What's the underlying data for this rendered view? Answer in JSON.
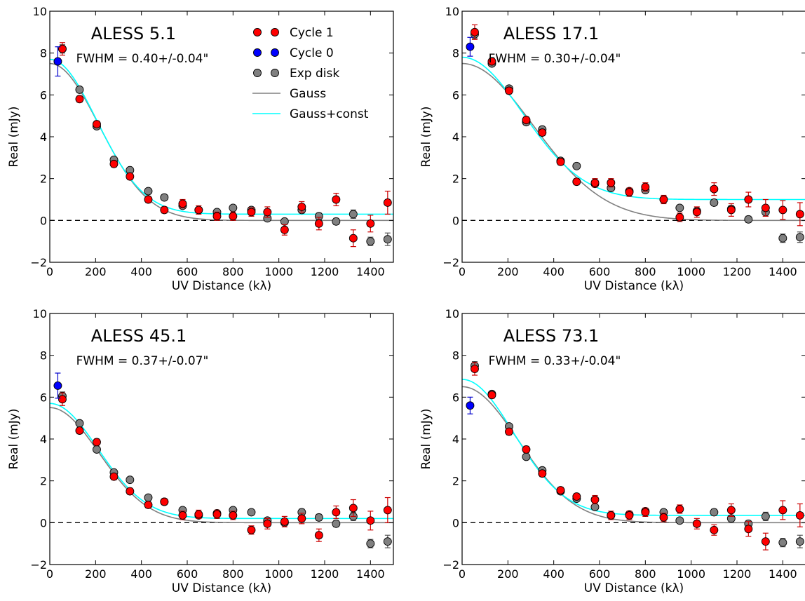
{
  "figure": {
    "xlabel": "UV Distance (kλ)",
    "ylabel": "Real (mJy)",
    "xlim": [
      0,
      1500
    ],
    "ylim": [
      -2,
      10
    ],
    "xticks": [
      0,
      200,
      400,
      600,
      800,
      1000,
      1200,
      1400
    ],
    "yticks": [
      -2,
      0,
      2,
      4,
      6,
      8,
      10
    ],
    "colors": {
      "cycle1": "#ff0000",
      "cycle0": "#0000ff",
      "exp_disk": "#808080",
      "gauss": "#808080",
      "gauss_const": "#00ffff",
      "errorbar_cycle1": "#cc0000",
      "errorbar_cycle0": "#0000cc",
      "zero_line": "#000000"
    }
  },
  "chart_data": [
    {
      "type": "scatter",
      "title": "ALESS 5.1",
      "annotation": "FWHM = 0.40+/-0.04\"",
      "legend": {
        "placement": "top-right",
        "entries": [
          "Cycle 1",
          "Cycle 0",
          "Exp disk",
          "Gauss",
          "Gauss+const"
        ]
      },
      "series": [
        {
          "name": "Cycle 1",
          "x": [
            55,
            130,
            205,
            280,
            350,
            430,
            500,
            580,
            650,
            730,
            800,
            880,
            950,
            1025,
            1100,
            1175,
            1250,
            1325,
            1400,
            1475
          ],
          "y": [
            8.2,
            5.8,
            4.6,
            2.7,
            2.1,
            1.0,
            0.5,
            0.8,
            0.5,
            0.2,
            0.2,
            0.4,
            0.4,
            -0.45,
            0.65,
            -0.15,
            1.0,
            -0.85,
            -0.15,
            0.85
          ],
          "err": [
            0.3,
            0.15,
            0.15,
            0.15,
            0.15,
            0.15,
            0.15,
            0.2,
            0.2,
            0.2,
            0.2,
            0.2,
            0.25,
            0.25,
            0.25,
            0.3,
            0.3,
            0.4,
            0.4,
            0.55
          ]
        },
        {
          "name": "Cycle 0",
          "x": [
            35
          ],
          "y": [
            7.6
          ],
          "err": [
            0.7
          ]
        },
        {
          "name": "Exp disk",
          "x": [
            55,
            130,
            205,
            280,
            350,
            430,
            500,
            580,
            650,
            730,
            800,
            880,
            950,
            1025,
            1100,
            1175,
            1250,
            1325,
            1400,
            1475
          ],
          "y": [
            8.2,
            6.25,
            4.5,
            2.9,
            2.4,
            1.4,
            1.1,
            0.7,
            0.5,
            0.4,
            0.6,
            0.5,
            0.1,
            -0.05,
            0.5,
            0.2,
            -0.05,
            0.3,
            -1.0,
            -0.9
          ],
          "err": [
            0.2,
            0.1,
            0.1,
            0.1,
            0.1,
            0.1,
            0.1,
            0.1,
            0.1,
            0.1,
            0.1,
            0.1,
            0.1,
            0.1,
            0.15,
            0.15,
            0.15,
            0.2,
            0.2,
            0.3
          ]
        },
        {
          "name": "Gauss",
          "model": "gauss",
          "amplitude": 7.5,
          "sigma": 215,
          "constant": 0
        },
        {
          "name": "Gauss+const",
          "model": "gauss",
          "amplitude": 7.4,
          "sigma": 205,
          "constant": 0.3
        }
      ]
    },
    {
      "type": "scatter",
      "title": "ALESS 17.1",
      "annotation": "FWHM = 0.30+/-0.04\"",
      "series": [
        {
          "name": "Cycle 1",
          "x": [
            55,
            130,
            205,
            280,
            350,
            430,
            500,
            580,
            650,
            730,
            800,
            880,
            950,
            1025,
            1100,
            1175,
            1250,
            1325,
            1400,
            1475
          ],
          "y": [
            9.0,
            7.6,
            6.2,
            4.8,
            4.2,
            2.8,
            1.85,
            1.8,
            1.8,
            1.35,
            1.6,
            1.0,
            0.15,
            0.4,
            1.5,
            0.5,
            1.0,
            0.6,
            0.5,
            0.3
          ],
          "err": [
            0.35,
            0.15,
            0.15,
            0.15,
            0.15,
            0.15,
            0.15,
            0.2,
            0.2,
            0.2,
            0.2,
            0.2,
            0.2,
            0.25,
            0.3,
            0.3,
            0.35,
            0.4,
            0.45,
            0.55
          ]
        },
        {
          "name": "Cycle 0",
          "x": [
            35
          ],
          "y": [
            8.3
          ],
          "err": [
            0.45
          ]
        },
        {
          "name": "Exp disk",
          "x": [
            55,
            130,
            205,
            280,
            350,
            430,
            500,
            580,
            650,
            730,
            800,
            880,
            950,
            1025,
            1100,
            1175,
            1250,
            1325,
            1400,
            1475
          ],
          "y": [
            8.9,
            7.5,
            6.3,
            4.7,
            4.35,
            2.85,
            2.6,
            1.75,
            1.55,
            1.4,
            1.45,
            1.0,
            0.6,
            0.45,
            0.85,
            0.55,
            0.05,
            0.4,
            -0.85,
            -0.8
          ],
          "err": [
            0.2,
            0.1,
            0.1,
            0.1,
            0.1,
            0.1,
            0.1,
            0.1,
            0.1,
            0.1,
            0.1,
            0.1,
            0.1,
            0.1,
            0.15,
            0.15,
            0.15,
            0.2,
            0.2,
            0.25
          ]
        },
        {
          "name": "Gauss",
          "model": "gauss",
          "amplitude": 7.5,
          "sigma": 310,
          "constant": 0
        },
        {
          "name": "Gauss+const",
          "model": "gauss",
          "amplitude": 6.8,
          "sigma": 265,
          "constant": 1.0
        }
      ]
    },
    {
      "type": "scatter",
      "title": "ALESS 45.1",
      "annotation": "FWHM = 0.37+/-0.07\"",
      "series": [
        {
          "name": "Cycle 1",
          "x": [
            55,
            130,
            205,
            280,
            350,
            430,
            500,
            580,
            650,
            730,
            800,
            880,
            950,
            1025,
            1100,
            1175,
            1250,
            1325,
            1400,
            1475
          ],
          "y": [
            5.9,
            4.4,
            3.85,
            2.2,
            1.5,
            0.85,
            1.0,
            0.35,
            0.4,
            0.4,
            0.35,
            -0.35,
            -0.05,
            0.05,
            0.2,
            -0.6,
            0.5,
            0.7,
            0.1,
            0.6
          ],
          "err": [
            0.3,
            0.15,
            0.15,
            0.15,
            0.15,
            0.15,
            0.15,
            0.2,
            0.2,
            0.2,
            0.2,
            0.2,
            0.25,
            0.25,
            0.25,
            0.3,
            0.3,
            0.4,
            0.45,
            0.6
          ]
        },
        {
          "name": "Cycle 0",
          "x": [
            35
          ],
          "y": [
            6.55
          ],
          "err": [
            0.6
          ]
        },
        {
          "name": "Exp disk",
          "x": [
            55,
            130,
            205,
            280,
            350,
            430,
            500,
            580,
            650,
            730,
            800,
            880,
            950,
            1025,
            1100,
            1175,
            1250,
            1325,
            1400,
            1475
          ],
          "y": [
            6.05,
            4.75,
            3.5,
            2.4,
            2.05,
            1.2,
            1.0,
            0.6,
            0.35,
            0.45,
            0.6,
            0.5,
            0.1,
            0.0,
            0.5,
            0.25,
            -0.05,
            0.3,
            -1.0,
            -0.9
          ],
          "err": [
            0.2,
            0.1,
            0.1,
            0.1,
            0.1,
            0.1,
            0.1,
            0.1,
            0.1,
            0.1,
            0.1,
            0.1,
            0.1,
            0.1,
            0.15,
            0.15,
            0.15,
            0.2,
            0.2,
            0.3
          ]
        },
        {
          "name": "Gauss",
          "model": "gauss",
          "amplitude": 5.5,
          "sigma": 215,
          "constant": 0
        },
        {
          "name": "Gauss+const",
          "model": "gauss",
          "amplitude": 5.5,
          "sigma": 210,
          "constant": 0.2
        }
      ]
    },
    {
      "type": "scatter",
      "title": "ALESS 73.1",
      "annotation": "FWHM = 0.33+/-0.04\"",
      "series": [
        {
          "name": "Cycle 1",
          "x": [
            55,
            130,
            205,
            280,
            350,
            430,
            500,
            580,
            650,
            730,
            800,
            880,
            950,
            1025,
            1100,
            1175,
            1250,
            1325,
            1400,
            1475
          ],
          "y": [
            7.35,
            6.1,
            4.35,
            3.5,
            2.35,
            1.55,
            1.25,
            1.1,
            0.35,
            0.35,
            0.5,
            0.25,
            0.65,
            -0.05,
            -0.35,
            0.6,
            -0.3,
            -0.9,
            0.6,
            0.35
          ],
          "err": [
            0.3,
            0.15,
            0.15,
            0.15,
            0.15,
            0.15,
            0.15,
            0.2,
            0.2,
            0.2,
            0.2,
            0.2,
            0.2,
            0.25,
            0.25,
            0.3,
            0.35,
            0.4,
            0.45,
            0.55
          ]
        },
        {
          "name": "Cycle 0",
          "x": [
            35
          ],
          "y": [
            5.6
          ],
          "err": [
            0.4
          ]
        },
        {
          "name": "Exp disk",
          "x": [
            55,
            130,
            205,
            280,
            350,
            430,
            500,
            580,
            650,
            730,
            800,
            880,
            950,
            1025,
            1100,
            1175,
            1250,
            1325,
            1400,
            1475
          ],
          "y": [
            7.5,
            6.15,
            4.6,
            3.15,
            2.5,
            1.5,
            1.15,
            0.75,
            0.35,
            0.4,
            0.55,
            0.5,
            0.1,
            -0.05,
            0.5,
            0.2,
            -0.05,
            0.3,
            -0.95,
            -0.9
          ],
          "err": [
            0.2,
            0.1,
            0.1,
            0.1,
            0.1,
            0.1,
            0.1,
            0.1,
            0.1,
            0.1,
            0.1,
            0.1,
            0.1,
            0.1,
            0.15,
            0.15,
            0.15,
            0.2,
            0.2,
            0.3
          ]
        },
        {
          "name": "Gauss",
          "model": "gauss",
          "amplitude": 6.5,
          "sigma": 245,
          "constant": 0
        },
        {
          "name": "Gauss+const",
          "model": "gauss",
          "amplitude": 6.5,
          "sigma": 225,
          "constant": 0.35
        }
      ]
    }
  ]
}
